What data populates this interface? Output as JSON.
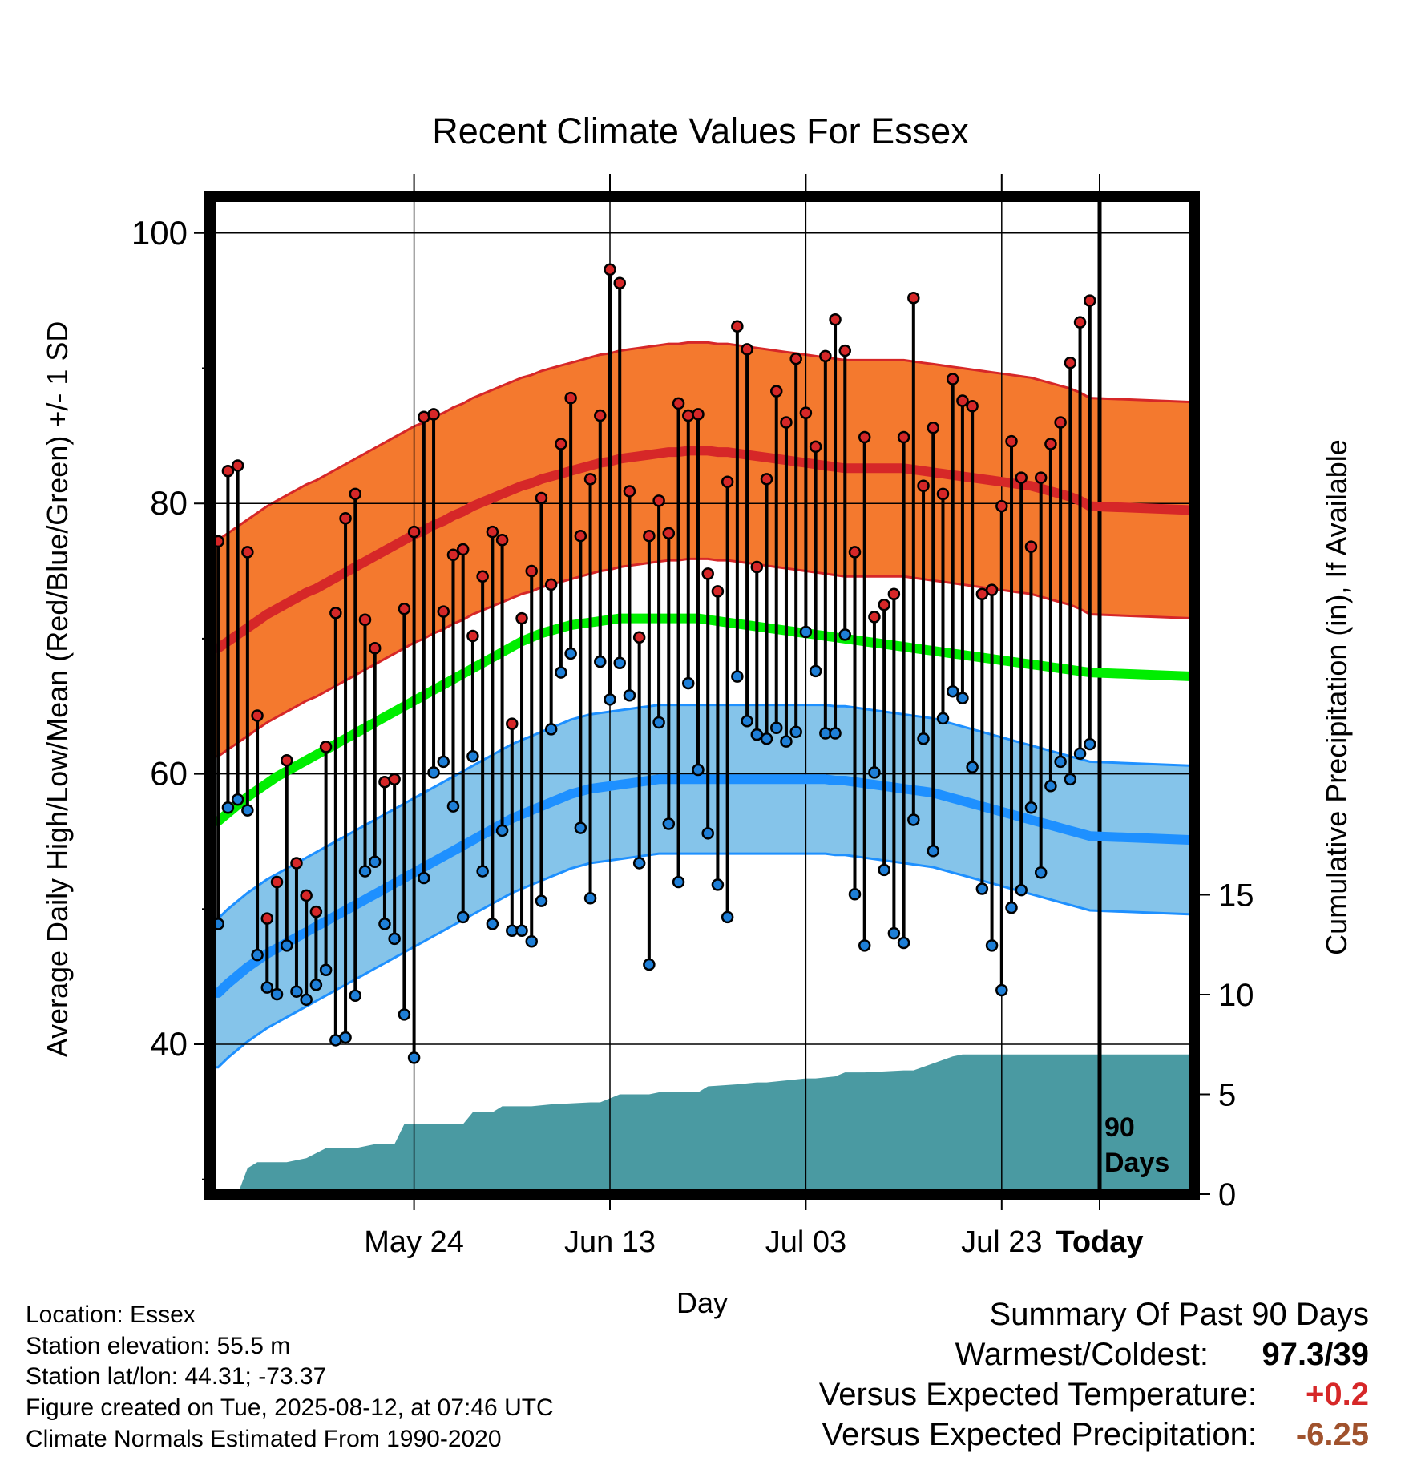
{
  "title": "Recent Climate Values For Essex",
  "chart_data": {
    "type": "line",
    "title": "Recent Climate Values For Essex",
    "xlabel": "Day",
    "ylabel": "Average Daily High/Low/Mean (Red/Blue/Green) +/- 1 SD",
    "y2label": "Cumulative Precipitation (in), If Available",
    "ylim": [
      28,
      102
    ],
    "y2lim": [
      0,
      23
    ],
    "grid": true,
    "x_ticks": [
      "May 24",
      "Jun 13",
      "Jul 03",
      "Jul 23",
      "Today"
    ],
    "y_ticks": [
      40,
      60,
      80,
      100
    ],
    "y2_ticks": [
      0,
      5,
      10,
      15
    ],
    "annotation": "90 Days",
    "days": [
      -90,
      -89,
      -88,
      -87,
      -86,
      -85,
      -84,
      -83,
      -82,
      -81,
      -80,
      -79,
      -78,
      -77,
      -76,
      -75,
      -74,
      -73,
      -72,
      -71,
      -70,
      -69,
      -68,
      -67,
      -66,
      -65,
      -64,
      -63,
      -62,
      -61,
      -60,
      -59,
      -58,
      -57,
      -56,
      -55,
      -54,
      -53,
      -52,
      -51,
      -50,
      -49,
      -48,
      -47,
      -46,
      -45,
      -44,
      -43,
      -42,
      -41,
      -40,
      -39,
      -38,
      -37,
      -36,
      -35,
      -34,
      -33,
      -32,
      -31,
      -30,
      -29,
      -28,
      -27,
      -26,
      -25,
      -24,
      -23,
      -22,
      -21,
      -20,
      -19,
      -18,
      -17,
      -16,
      -15,
      -14,
      -13,
      -12,
      -11,
      -10,
      -9,
      -8,
      -7,
      -6,
      -5,
      -4,
      -3,
      -2,
      -1
    ],
    "daily_high": [
      77.2,
      82.4,
      82.8,
      76.4,
      64.3,
      49.3,
      52.0,
      61.0,
      53.4,
      51.0,
      49.8,
      62.0,
      71.9,
      78.9,
      80.7,
      71.4,
      69.3,
      59.4,
      59.6,
      72.2,
      77.9,
      86.4,
      86.6,
      72.0,
      76.2,
      76.6,
      70.2,
      74.6,
      77.9,
      77.3,
      63.7,
      71.5,
      75.0,
      80.4,
      74.0,
      84.4,
      87.8,
      77.6,
      81.8,
      86.5,
      97.3,
      96.3,
      80.9,
      70.1,
      77.6,
      80.2,
      77.8,
      87.4,
      86.5,
      86.6,
      74.8,
      73.5,
      81.6,
      93.1,
      91.4,
      75.3,
      81.8,
      88.3,
      86.0,
      90.7,
      86.7,
      84.2,
      90.9,
      93.6,
      91.3,
      76.4,
      84.9,
      71.6,
      72.5,
      73.3,
      84.9,
      95.2,
      81.3,
      85.6,
      80.7,
      89.2,
      87.6,
      87.2,
      73.3,
      73.6,
      79.8,
      84.6,
      81.9,
      76.8,
      81.9,
      84.4,
      86.0,
      90.4,
      93.4,
      95.0
    ],
    "daily_low": [
      48.9,
      57.5,
      58.1,
      57.3,
      46.6,
      44.2,
      43.7,
      47.3,
      43.9,
      43.3,
      44.4,
      45.5,
      40.3,
      40.5,
      43.6,
      52.8,
      53.5,
      48.9,
      47.8,
      42.2,
      39.0,
      52.3,
      60.1,
      60.9,
      57.6,
      49.4,
      61.3,
      52.8,
      48.9,
      55.8,
      48.4,
      48.4,
      47.6,
      50.6,
      63.3,
      67.5,
      68.9,
      56.0,
      50.8,
      68.3,
      65.5,
      68.2,
      65.8,
      53.4,
      45.9,
      63.8,
      56.3,
      52.0,
      66.7,
      60.3,
      55.6,
      51.8,
      49.4,
      67.2,
      63.9,
      62.9,
      62.6,
      63.4,
      62.4,
      63.1,
      70.5,
      67.6,
      63.0,
      63.0,
      70.3,
      51.1,
      47.3,
      60.1,
      52.9,
      48.2,
      47.5,
      56.6,
      62.6,
      54.3,
      64.1,
      66.1,
      65.6,
      60.5,
      51.5,
      47.3,
      44.0,
      50.1,
      51.4,
      57.5,
      52.7,
      59.1,
      60.9,
      59.6,
      61.5,
      62.2
    ],
    "normal_high": [
      69.3,
      69.8,
      70.3,
      70.8,
      71.3,
      71.8,
      72.2,
      72.6,
      73.0,
      73.4,
      73.7,
      74.1,
      74.5,
      74.9,
      75.3,
      75.7,
      76.1,
      76.5,
      76.9,
      77.3,
      77.7,
      78.0,
      78.4,
      78.7,
      79.1,
      79.4,
      79.8,
      80.1,
      80.4,
      80.7,
      81.0,
      81.3,
      81.5,
      81.8,
      82.0,
      82.2,
      82.4,
      82.6,
      82.8,
      83.0,
      83.1,
      83.3,
      83.4,
      83.5,
      83.6,
      83.7,
      83.8,
      83.8,
      83.9,
      83.9,
      83.9,
      83.8,
      83.8,
      83.7,
      83.6,
      83.5,
      83.4,
      83.3,
      83.2,
      83.1,
      83.0,
      82.9,
      82.8,
      82.7,
      82.6,
      82.6,
      82.6,
      82.6,
      82.6,
      82.6,
      82.6,
      82.5,
      82.4,
      82.3,
      82.2,
      82.1,
      82.0,
      81.9,
      81.8,
      81.7,
      81.6,
      81.5,
      81.4,
      81.3,
      81.1,
      80.9,
      80.7,
      80.5,
      80.2,
      79.8
    ],
    "normal_high_sd": 8.0,
    "normal_low": [
      43.8,
      44.5,
      45.1,
      45.7,
      46.2,
      46.7,
      47.1,
      47.5,
      47.9,
      48.3,
      48.7,
      49.1,
      49.5,
      49.9,
      50.3,
      50.7,
      51.1,
      51.5,
      51.9,
      52.3,
      52.7,
      53.1,
      53.5,
      53.9,
      54.3,
      54.7,
      55.1,
      55.5,
      55.9,
      56.3,
      56.7,
      57.0,
      57.3,
      57.6,
      57.9,
      58.2,
      58.5,
      58.7,
      58.9,
      59.0,
      59.1,
      59.2,
      59.3,
      59.4,
      59.5,
      59.6,
      59.6,
      59.6,
      59.6,
      59.6,
      59.6,
      59.6,
      59.6,
      59.6,
      59.6,
      59.6,
      59.6,
      59.6,
      59.6,
      59.6,
      59.6,
      59.6,
      59.6,
      59.5,
      59.5,
      59.4,
      59.3,
      59.2,
      59.1,
      59.0,
      58.9,
      58.8,
      58.7,
      58.6,
      58.4,
      58.2,
      58.0,
      57.8,
      57.6,
      57.4,
      57.2,
      57.0,
      56.8,
      56.6,
      56.4,
      56.2,
      56.0,
      55.8,
      55.6,
      55.4
    ],
    "normal_low_sd": 5.5,
    "normal_mean": [
      56.5,
      57.1,
      57.7,
      58.3,
      58.8,
      59.3,
      59.8,
      60.2,
      60.6,
      61.0,
      61.4,
      61.8,
      62.2,
      62.6,
      63.0,
      63.4,
      63.8,
      64.2,
      64.6,
      65.0,
      65.4,
      65.8,
      66.2,
      66.6,
      67.0,
      67.4,
      67.8,
      68.2,
      68.6,
      69.0,
      69.4,
      69.8,
      70.1,
      70.4,
      70.6,
      70.8,
      71.0,
      71.1,
      71.2,
      71.3,
      71.4,
      71.5,
      71.5,
      71.5,
      71.5,
      71.5,
      71.5,
      71.5,
      71.5,
      71.5,
      71.4,
      71.3,
      71.2,
      71.1,
      71.0,
      70.9,
      70.8,
      70.7,
      70.6,
      70.5,
      70.4,
      70.3,
      70.2,
      70.1,
      70.0,
      69.9,
      69.8,
      69.7,
      69.6,
      69.5,
      69.4,
      69.3,
      69.2,
      69.1,
      69.0,
      68.9,
      68.8,
      68.7,
      68.6,
      68.5,
      68.4,
      68.3,
      68.2,
      68.1,
      68.0,
      67.9,
      67.8,
      67.7,
      67.6,
      67.5
    ],
    "cumulative_precip_x": [
      -88,
      -87,
      -86,
      -85,
      -83,
      -81,
      -79,
      -77,
      -76,
      -74,
      -72,
      -71,
      -69,
      -68,
      -65,
      -64,
      -62,
      -61,
      -58,
      -56,
      -52,
      -51,
      -49,
      -46,
      -45,
      -41,
      -40,
      -37,
      -35,
      -34,
      -30,
      -29,
      -27,
      -26,
      -24,
      -20,
      -19,
      -15,
      -14,
      -12,
      -11,
      -8,
      -7,
      -1
    ],
    "cumulative_precip": [
      0,
      1.3,
      1.6,
      1.6,
      1.6,
      1.8,
      2.3,
      2.3,
      2.3,
      2.5,
      2.5,
      3.5,
      3.5,
      3.5,
      3.5,
      4.1,
      4.1,
      4.4,
      4.4,
      4.5,
      4.6,
      4.6,
      5.0,
      5.0,
      5.1,
      5.1,
      5.4,
      5.5,
      5.6,
      5.6,
      5.8,
      5.8,
      5.9,
      6.1,
      6.1,
      6.2,
      6.2,
      6.9,
      7.0,
      7.0,
      7.0,
      7.0,
      7.0,
      7.0
    ]
  },
  "info": {
    "location": "Location: Essex",
    "elevation": "Station elevation: 55.5 m",
    "latlon": "Station lat/lon: 44.31; -73.37",
    "created": "Figure created on Tue, 2025-08-12, at 07:46 UTC",
    "normals": "Climate Normals Estimated From 1990-2020"
  },
  "summary": {
    "heading": "Summary Of Past 90 Days",
    "warmest_label": "Warmest/Coldest:",
    "warmest_value": "97.3/39",
    "temp_label": "Versus Expected Temperature:",
    "temp_value": "+0.2",
    "temp_color": "#d62728",
    "precip_label": "Versus Expected Precipitation:",
    "precip_value": "-6.25",
    "precip_color": "#a0522d"
  },
  "colors": {
    "high_band": "#f4792e",
    "high_line": "#d62728",
    "low_band": "#85c4ea",
    "low_line": "#1e90ff",
    "mean_line": "#00ee00",
    "precip": "#4a9aa2",
    "high_dot": "#d62728",
    "low_dot": "#1e7fd8"
  }
}
